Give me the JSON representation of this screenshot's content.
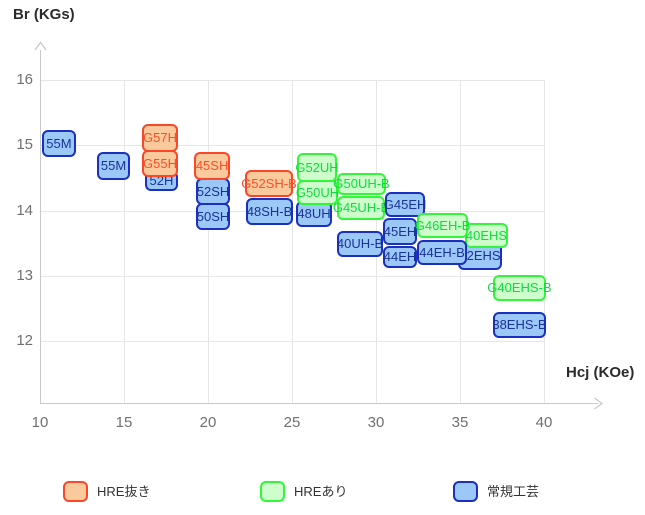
{
  "colors": {
    "hre_free": {
      "fill": "#FBCA9C",
      "border": "#FC4628",
      "text": "#FB4F28"
    },
    "hre": {
      "fill": "#CDFECC",
      "border": "#33F63A",
      "text": "#0EDC3C"
    },
    "standard": {
      "fill": "#9BC8F7",
      "border": "#1B30C2",
      "text": "#1A3396"
    },
    "grid": "#e6e6e6",
    "axis": "#c9c9c9",
    "tick_text": "#707070",
    "axis_label_text": "#2b2b2b",
    "legend_text": "#333333"
  },
  "chart_data": {
    "type": "scatter",
    "subtype": "labeled-range-boxes",
    "title": "",
    "xlabel": "Hcj (KOe)",
    "ylabel": "Br (KGs)",
    "xlim": [
      10,
      40
    ],
    "ylim": [
      12,
      16
    ],
    "x_ticks": [
      10,
      15,
      20,
      25,
      30,
      35,
      40
    ],
    "y_ticks": [
      16,
      15,
      14,
      13,
      12
    ],
    "grid": true,
    "legend_position": "bottom",
    "legend": [
      {
        "id": "hre_free",
        "label": "HRE抜き"
      },
      {
        "id": "hre",
        "label": "HREあり"
      },
      {
        "id": "standard",
        "label": "常規工芸"
      }
    ],
    "grades": [
      {
        "label": "55M",
        "series": "standard",
        "hcj": [
          10.12,
          12.14
        ],
        "br": [
          14.82,
          15.23
        ],
        "z": 1
      },
      {
        "label": "55M",
        "series": "standard",
        "hcj": [
          13.39,
          15.36
        ],
        "br": [
          14.47,
          14.9
        ],
        "z": 1
      },
      {
        "label": "52H",
        "series": "standard",
        "hcj": [
          16.25,
          18.21
        ],
        "br": [
          14.3,
          14.61
        ],
        "z": 1
      },
      {
        "label": "G57H",
        "series": "hre_free",
        "hcj": [
          16.07,
          18.21
        ],
        "br": [
          14.9,
          15.33
        ],
        "z": 2
      },
      {
        "label": "G55H",
        "series": "hre_free",
        "hcj": [
          16.07,
          18.21
        ],
        "br": [
          14.51,
          14.93
        ],
        "z": 2
      },
      {
        "label": "52SH",
        "series": "standard",
        "hcj": [
          19.29,
          21.31
        ],
        "br": [
          14.09,
          14.5
        ],
        "z": 1
      },
      {
        "label": "50SH",
        "series": "standard",
        "hcj": [
          19.29,
          21.31
        ],
        "br": [
          13.7,
          14.12
        ],
        "z": 1
      },
      {
        "label": "45SH",
        "series": "hre_free",
        "hcj": [
          19.17,
          21.31
        ],
        "br": [
          14.47,
          14.9
        ],
        "z": 2
      },
      {
        "label": "48SH-B",
        "series": "standard",
        "hcj": [
          22.26,
          25.06
        ],
        "br": [
          13.78,
          14.19
        ],
        "z": 1
      },
      {
        "label": "G52SH-B",
        "series": "hre_free",
        "hcj": [
          22.2,
          25.06
        ],
        "br": [
          14.21,
          14.62
        ],
        "z": 2
      },
      {
        "label": "48UH",
        "series": "standard",
        "hcj": [
          25.24,
          27.38
        ],
        "br": [
          13.75,
          14.15
        ],
        "z": 1
      },
      {
        "label": "G52UH",
        "series": "hre",
        "hcj": [
          25.3,
          27.68
        ],
        "br": [
          14.44,
          14.88
        ],
        "z": 2
      },
      {
        "label": "G50UH",
        "series": "hre",
        "hcj": [
          25.3,
          27.74
        ],
        "br": [
          14.09,
          14.47
        ],
        "z": 2
      },
      {
        "label": "G50UH-B",
        "series": "hre",
        "hcj": [
          27.68,
          30.6
        ],
        "br": [
          14.24,
          14.58
        ],
        "z": 2
      },
      {
        "label": "G45UH-B",
        "series": "hre",
        "hcj": [
          27.68,
          30.54
        ],
        "br": [
          13.86,
          14.22
        ],
        "z": 2
      },
      {
        "label": "40UH-B",
        "series": "standard",
        "hcj": [
          27.68,
          30.42
        ],
        "br": [
          13.29,
          13.69
        ],
        "z": 1
      },
      {
        "label": "G45EH",
        "series": "standard",
        "hcj": [
          30.54,
          32.92
        ],
        "br": [
          13.9,
          14.29
        ],
        "z": 3
      },
      {
        "label": "45EH",
        "series": "standard",
        "hcj": [
          30.42,
          32.44
        ],
        "br": [
          13.47,
          13.89
        ],
        "z": 3
      },
      {
        "label": "44EH",
        "series": "standard",
        "hcj": [
          30.42,
          32.44
        ],
        "br": [
          13.12,
          13.46
        ],
        "z": 3
      },
      {
        "label": "42EHS",
        "series": "standard",
        "hcj": [
          34.88,
          37.5
        ],
        "br": [
          13.09,
          13.52
        ],
        "z": 1
      },
      {
        "label": "40EHS",
        "series": "hre",
        "hcj": [
          35.3,
          37.86
        ],
        "br": [
          13.43,
          13.81
        ],
        "z": 2
      },
      {
        "label": "44EH-B",
        "series": "standard",
        "hcj": [
          32.44,
          35.42
        ],
        "br": [
          13.17,
          13.55
        ],
        "z": 3
      },
      {
        "label": "G46EH-B",
        "series": "hre",
        "hcj": [
          32.44,
          35.48
        ],
        "br": [
          13.58,
          13.96
        ],
        "z": 4
      },
      {
        "label": "G40EHS-B",
        "series": "hre",
        "hcj": [
          36.96,
          40.12
        ],
        "br": [
          12.62,
          13.01
        ],
        "z": 1
      },
      {
        "label": "38EHS-B",
        "series": "standard",
        "hcj": [
          36.96,
          40.12
        ],
        "br": [
          12.05,
          12.45
        ],
        "z": 1
      }
    ]
  }
}
